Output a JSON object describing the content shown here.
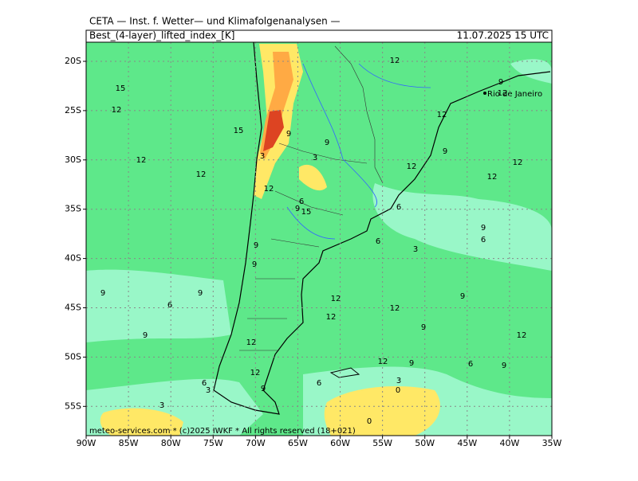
{
  "header": {
    "title": "CETA — Inst. f. Wetter— und Klimafolgenanalysen —",
    "field": "Best_(4-layer)_lifted_index_[K]",
    "time": "11.07.2025  15 UTC"
  },
  "axes": {
    "lat_labels": [
      "20S",
      "25S",
      "30S",
      "35S",
      "40S",
      "45S",
      "50S",
      "55S"
    ],
    "lon_labels": [
      "90W",
      "85W",
      "80W",
      "75W",
      "70W",
      "65W",
      "60W",
      "55W",
      "50W",
      "45W",
      "40W",
      "35W"
    ]
  },
  "city": "Rio de Janeiro",
  "footer": "meteo-services.com * (c)2025 IWKF * All rights reserved (18+021)",
  "contour_labels": [
    "12",
    "9",
    "12",
    "15",
    "12",
    "12",
    "15",
    "9",
    "9",
    "3",
    "9",
    "12",
    "3",
    "12",
    "12",
    "12",
    "12",
    "12",
    "6",
    "9",
    "15",
    "6",
    "9",
    "6",
    "6",
    "3",
    "9",
    "9",
    "9",
    "9",
    "6",
    "12",
    "12",
    "9",
    "12",
    "9",
    "9",
    "12",
    "12",
    "12",
    "9",
    "6",
    "9",
    "12",
    "3",
    "6",
    "6",
    "3",
    "9",
    "0",
    "3",
    "0"
  ]
}
